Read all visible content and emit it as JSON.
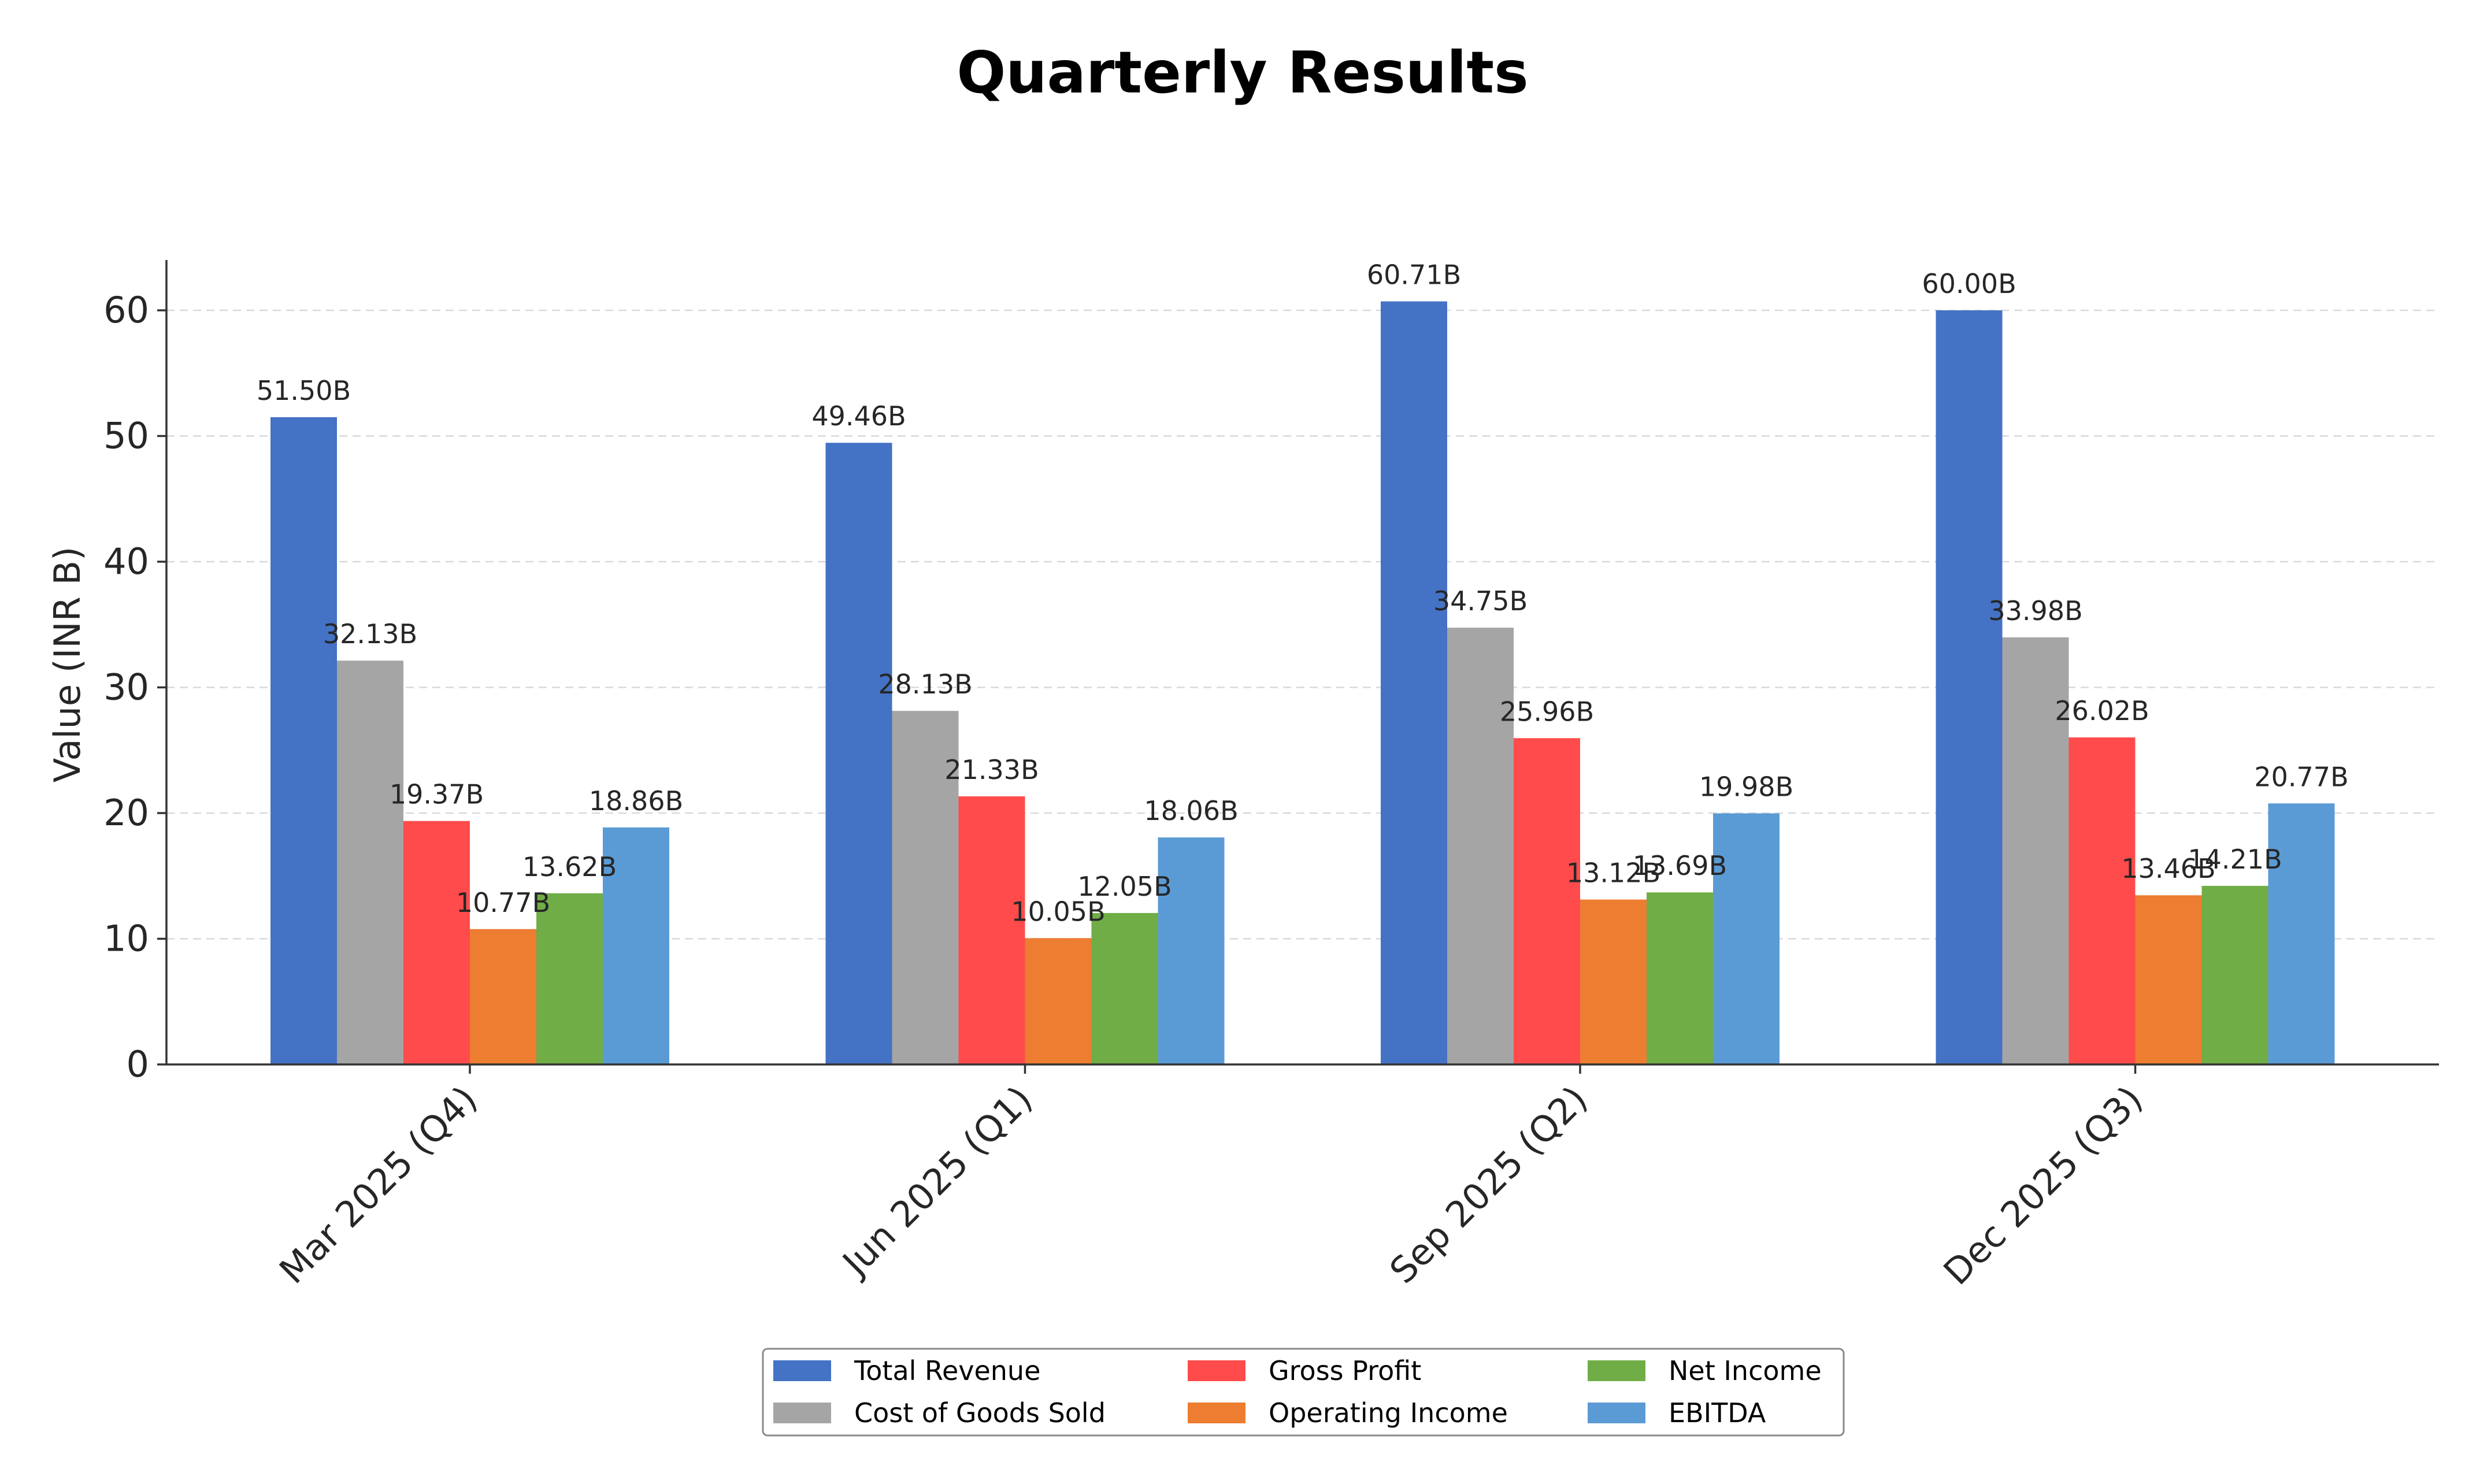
{
  "chart_data": {
    "type": "bar",
    "title": "Quarterly Results",
    "xlabel": "",
    "ylabel": "Value (INR B)",
    "ylim": [
      0,
      64
    ],
    "yticks": [
      0,
      10,
      20,
      30,
      40,
      50,
      60
    ],
    "grid": true,
    "legend_position": "bottom-center",
    "categories": [
      "Mar 2025 (Q4)",
      "Jun 2025 (Q1)",
      "Sep 2025 (Q2)",
      "Dec 2025 (Q3)"
    ],
    "series": [
      {
        "name": "Total Revenue",
        "color": "#4472C4",
        "values": [
          51.5,
          49.46,
          60.71,
          60.0
        ],
        "labels": [
          "51.50B",
          "49.46B",
          "60.71B",
          "60.00B"
        ]
      },
      {
        "name": "Cost of Goods Sold",
        "color": "#A5A5A5",
        "values": [
          32.13,
          28.13,
          34.75,
          33.98
        ],
        "labels": [
          "32.13B",
          "28.13B",
          "34.75B",
          "33.98B"
        ]
      },
      {
        "name": "Gross Profit",
        "color": "#FF4B4B",
        "values": [
          19.37,
          21.33,
          25.96,
          26.02
        ],
        "labels": [
          "19.37B",
          "21.33B",
          "25.96B",
          "26.02B"
        ]
      },
      {
        "name": "Operating Income",
        "color": "#ED7D31",
        "values": [
          10.77,
          10.05,
          13.12,
          13.46
        ],
        "labels": [
          "10.77B",
          "10.05B",
          "13.12B",
          "13.46B"
        ]
      },
      {
        "name": "Net Income",
        "color": "#70AD47",
        "values": [
          13.62,
          12.05,
          13.69,
          14.21
        ],
        "labels": [
          "13.62B",
          "12.05B",
          "13.69B",
          "14.21B"
        ]
      },
      {
        "name": "EBITDA",
        "color": "#5B9BD5",
        "values": [
          18.86,
          18.06,
          19.98,
          20.77
        ],
        "labels": [
          "18.86B",
          "18.06B",
          "19.98B",
          "20.77B"
        ]
      }
    ]
  }
}
